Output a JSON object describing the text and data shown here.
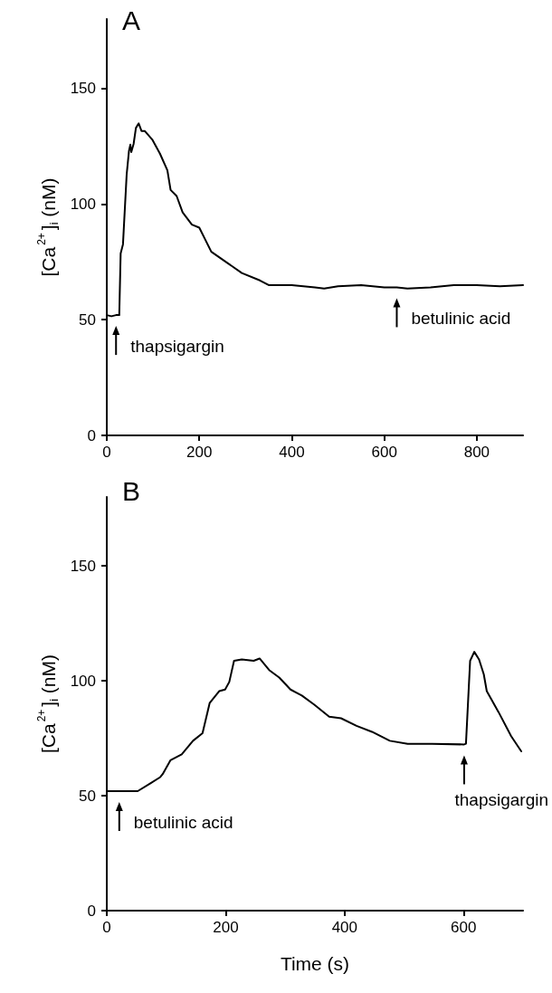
{
  "chart_data": [
    {
      "type": "line",
      "title": "A",
      "ylabel": "[Ca$^{2+}$]$_{i}$ (nM)",
      "xlim": [
        0,
        900
      ],
      "xticks": [
        0,
        200,
        400,
        600,
        800
      ],
      "ylim": [
        0,
        180
      ],
      "yticks": [
        0,
        50,
        100,
        150
      ],
      "grid": false,
      "marker": "none",
      "line_style": "solid",
      "series": [
        {
          "color": "#000000",
          "x": [
            0,
            10,
            20,
            27,
            30,
            35,
            43,
            48,
            51,
            53,
            58,
            63,
            69,
            75,
            82,
            99,
            115,
            131,
            138,
            151,
            164,
            184,
            200,
            226,
            259,
            292,
            331,
            350,
            400,
            450,
            470,
            500,
            550,
            600,
            627,
            650,
            700,
            750,
            800,
            850,
            900
          ],
          "values": [
            52,
            51.5,
            52,
            52,
            78.7,
            82.6,
            112.8,
            123,
            125.7,
            122.5,
            126,
            132.9,
            134.9,
            131.6,
            131.6,
            127.7,
            121.8,
            114.6,
            106.1,
            103.5,
            96.4,
            91.1,
            89.8,
            79.4,
            74.8,
            70.2,
            67,
            65,
            65,
            64,
            63.5,
            64.5,
            65,
            64,
            64,
            63.5,
            64,
            65,
            65,
            64.5,
            65
          ]
        }
      ],
      "annotations": [
        {
          "text": "thapsigargin",
          "x": 20,
          "y": 52
        },
        {
          "text": "betulinic acid",
          "x": 627,
          "y": 64
        }
      ]
    },
    {
      "type": "line",
      "title": "B",
      "xlabel": "Time (s)",
      "ylabel": "[Ca$^{2+}$]$_{i}$ (nM)",
      "xlim": [
        0,
        700
      ],
      "xticks": [
        0,
        200,
        400,
        600
      ],
      "ylim": [
        0,
        180
      ],
      "yticks": [
        0,
        50,
        100,
        150
      ],
      "grid": false,
      "marker": "none",
      "line_style": "solid",
      "series": [
        {
          "color": "#000000",
          "x": [
            0,
            21,
            52,
            74,
            90,
            94,
            107,
            126,
            145,
            161,
            173,
            189,
            199,
            206,
            214,
            227,
            247,
            257,
            273,
            290,
            309,
            328,
            349,
            374,
            394,
            420,
            446,
            476,
            506,
            547,
            601,
            604,
            611,
            618,
            626,
            634,
            639,
            659,
            680,
            697
          ],
          "values": [
            52,
            52,
            52,
            55.5,
            58.1,
            59.4,
            65.4,
            68,
            73.9,
            77.2,
            90.3,
            95.5,
            96.2,
            99.5,
            108.7,
            109.3,
            108.7,
            109.7,
            104.7,
            101.4,
            96.2,
            93.6,
            89.6,
            84.4,
            83.7,
            80.4,
            77.8,
            73.9,
            72.6,
            72.6,
            72.3,
            72.6,
            108.7,
            112.6,
            109.3,
            102.8,
            95.5,
            86.3,
            75.9,
            69.3
          ]
        }
      ],
      "annotations": [
        {
          "text": "betulinic acid",
          "x": 21,
          "y": 52
        },
        {
          "text": "thapsigargin",
          "x": 601,
          "y": 72.3
        }
      ]
    }
  ]
}
